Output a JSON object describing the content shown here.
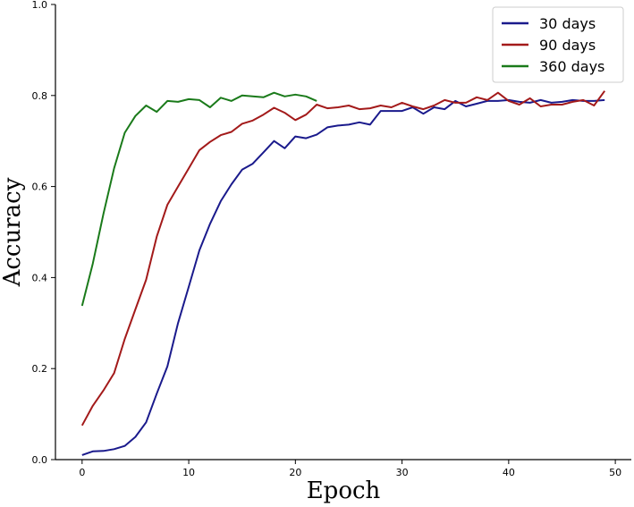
{
  "chart_data": {
    "type": "line",
    "title": "",
    "xlabel": "Epoch",
    "ylabel": "Accuracy",
    "xlim": [
      -2.5,
      51.5
    ],
    "ylim": [
      0.0,
      1.0
    ],
    "xticks": [
      0,
      10,
      20,
      30,
      40,
      50
    ],
    "yticks": [
      0.0,
      0.2,
      0.4,
      0.6,
      0.8,
      1.0
    ],
    "grid": false,
    "legend_position": "top-right",
    "series": [
      {
        "name": "30 days",
        "color": "#1a1a8c",
        "x": [
          0,
          1,
          2,
          3,
          4,
          5,
          6,
          7,
          8,
          9,
          10,
          11,
          12,
          13,
          14,
          15,
          16,
          17,
          18,
          19,
          20,
          21,
          22,
          23,
          24,
          25,
          26,
          27,
          28,
          29,
          30,
          31,
          32,
          33,
          34,
          35,
          36,
          37,
          38,
          39,
          40,
          41,
          42,
          43,
          44,
          45,
          46,
          47,
          48,
          49
        ],
        "y": [
          0.01,
          0.018,
          0.019,
          0.023,
          0.03,
          0.05,
          0.082,
          0.145,
          0.205,
          0.3,
          0.38,
          0.46,
          0.518,
          0.568,
          0.605,
          0.637,
          0.65,
          0.675,
          0.7,
          0.684,
          0.71,
          0.706,
          0.714,
          0.73,
          0.734,
          0.736,
          0.741,
          0.736,
          0.766,
          0.766,
          0.766,
          0.774,
          0.76,
          0.774,
          0.77,
          0.788,
          0.776,
          0.782,
          0.788,
          0.788,
          0.79,
          0.786,
          0.784,
          0.79,
          0.784,
          0.786,
          0.79,
          0.788,
          0.788,
          0.79
        ]
      },
      {
        "name": "90 days",
        "color": "#a31a1a",
        "x": [
          0,
          1,
          2,
          3,
          4,
          5,
          6,
          7,
          8,
          9,
          10,
          11,
          12,
          13,
          14,
          15,
          16,
          17,
          18,
          19,
          20,
          21,
          22,
          23,
          24,
          25,
          26,
          27,
          28,
          29,
          30,
          31,
          32,
          33,
          34,
          35,
          36,
          37,
          38,
          39,
          40,
          41,
          42,
          43,
          44,
          45,
          46,
          47,
          48,
          49
        ],
        "y": [
          0.075,
          0.118,
          0.152,
          0.19,
          0.265,
          0.33,
          0.395,
          0.49,
          0.56,
          0.6,
          0.64,
          0.68,
          0.698,
          0.713,
          0.72,
          0.738,
          0.745,
          0.758,
          0.773,
          0.762,
          0.746,
          0.758,
          0.78,
          0.772,
          0.774,
          0.778,
          0.77,
          0.772,
          0.778,
          0.774,
          0.784,
          0.776,
          0.77,
          0.778,
          0.79,
          0.784,
          0.784,
          0.796,
          0.79,
          0.806,
          0.788,
          0.78,
          0.794,
          0.776,
          0.78,
          0.78,
          0.786,
          0.79,
          0.778,
          0.81
        ]
      },
      {
        "name": "360 days",
        "color": "#1a7a1a",
        "x": [
          0,
          1,
          2,
          3,
          4,
          5,
          6,
          7,
          8,
          9,
          10,
          11,
          12,
          13,
          14,
          15,
          16,
          17,
          18,
          19,
          20,
          21,
          22
        ],
        "y": [
          0.338,
          0.43,
          0.54,
          0.64,
          0.718,
          0.755,
          0.778,
          0.764,
          0.788,
          0.786,
          0.792,
          0.79,
          0.774,
          0.795,
          0.788,
          0.8,
          0.798,
          0.796,
          0.806,
          0.798,
          0.802,
          0.798,
          0.788
        ]
      }
    ]
  }
}
